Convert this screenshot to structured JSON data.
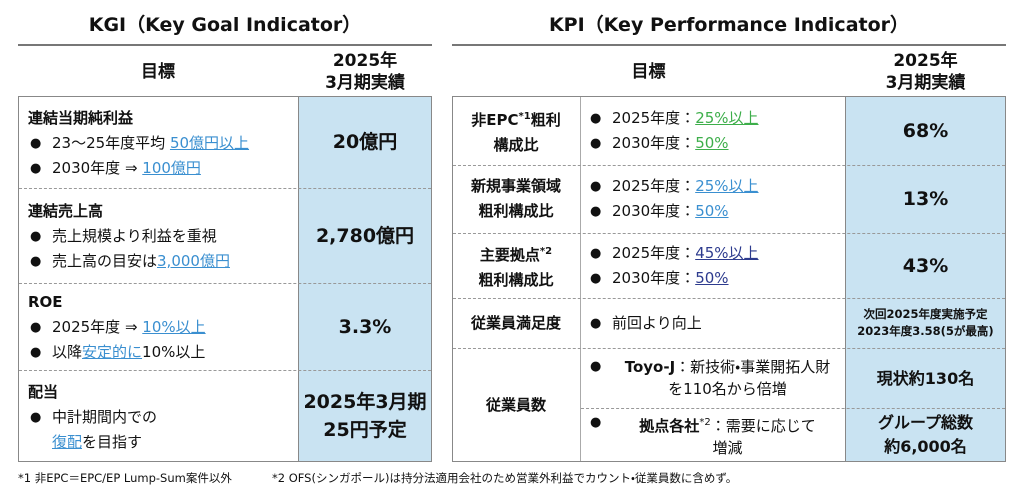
{
  "kgi": {
    "title": "KGI（Key Goal Indicator）",
    "header": {
      "goal": "目標",
      "result": [
        "2025年",
        "3月期実績"
      ]
    },
    "rows": [
      {
        "label": "連結当期純利益",
        "bullets": [
          [
            "23～25年度平均 ",
            "50億円以上"
          ],
          [
            "2030年度 ⇒ ",
            "100億円"
          ]
        ],
        "result": [
          "20億円"
        ]
      },
      {
        "label": "連結売上高",
        "bullets": [
          [
            "売上規模より利益を重視"
          ],
          [
            "売上高の目安は",
            "3,000億円"
          ]
        ],
        "result": [
          "2,780億円"
        ]
      },
      {
        "label": "ROE",
        "bullets": [
          [
            "2025年度 ⇒ ",
            "10%以上"
          ],
          [
            "以降",
            "安定的に",
            "10%以上"
          ]
        ],
        "result": [
          "3.3%"
        ]
      },
      {
        "label": "配当",
        "bullets": [
          [
            "中計期間内での",
            "復配",
            "を目指す"
          ]
        ],
        "result": [
          "2025年3月期",
          "25円予定"
        ]
      }
    ]
  },
  "kpi": {
    "title": "KPI（Key Performance Indicator）",
    "header": {
      "goal": "目標",
      "result": [
        "2025年",
        "3月期実績"
      ]
    },
    "rows": [
      {
        "label": [
          "非EPC",
          "*1",
          "粗利",
          "構成比"
        ],
        "bullets": [
          [
            "2025年度：",
            "25%以上"
          ],
          [
            "2030年度：",
            "50%"
          ]
        ],
        "result": [
          "68%"
        ]
      },
      {
        "label": [
          "新規事業領域",
          "粗利構成比"
        ],
        "bullets": [
          [
            "2025年度：",
            "25%以上"
          ],
          [
            "2030年度：",
            "50%"
          ]
        ],
        "result": [
          "13%"
        ]
      },
      {
        "label": [
          "主要拠点",
          "*2",
          "粗利構成比"
        ],
        "bullets": [
          [
            "2025年度：",
            "45%以上"
          ],
          [
            "2030年度：",
            "50%"
          ]
        ],
        "result": [
          "43%"
        ]
      },
      {
        "label": [
          "従業員満足度"
        ],
        "bullets": [
          [
            "前回より向上"
          ]
        ],
        "result": [
          "次回2025年度実施予定",
          "2023年度3.58(5が最高)"
        ]
      },
      {
        "label": [
          "従業員数"
        ],
        "subrows": [
          {
            "bullets": [
              [
                "Toyo-J",
                "：新技術・事業開拓人財",
                "を110名から倍増"
              ]
            ],
            "result": [
              "現状約130名"
            ]
          },
          {
            "bullets": [
              [
                "拠点各社",
                "*2",
                "：需要に応じて",
                "増減"
              ]
            ],
            "result": [
              "グループ総数",
              "約6,000名"
            ]
          }
        ]
      }
    ]
  },
  "footnotes": [
    "*1 非EPC＝EPC/EP Lump-Sum案件以外",
    "*2 OFS(シンガポール)は持分法適用会社のため営業外利益でカウント・従業員数に含めず。"
  ]
}
